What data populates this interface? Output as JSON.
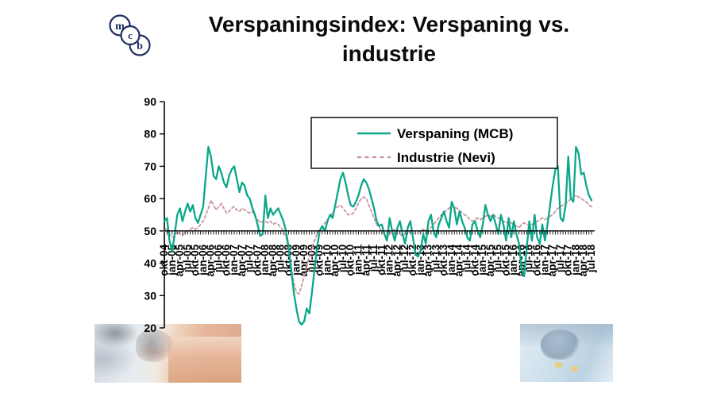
{
  "title": {
    "text": "Verspaningsindex: Verspaning vs. industrie"
  },
  "logo": {
    "name": "MCB",
    "letters": [
      "m",
      "c",
      "b"
    ],
    "color": "#1e2e63"
  },
  "colors": {
    "verspaning_line": "#0aa78a",
    "industrie_line": "#c7909b",
    "axis": "#000000",
    "background": "#ffffff"
  },
  "footer_images": [
    {
      "name": "machining-photo-left",
      "description": "faded photo of cutting tool on copper workpiece"
    },
    {
      "name": "machine-photo-right",
      "description": "faded blue photo of machine spindle"
    }
  ],
  "chart_data": {
    "type": "line",
    "title": "Verspaningsindex: Verspaning vs. industrie",
    "xlabel": "",
    "ylabel": "",
    "ylim": [
      20,
      90
    ],
    "y_ticks": [
      20,
      30,
      40,
      50,
      60,
      70,
      80,
      90
    ],
    "x_axis_crosses_at": 50,
    "grid": false,
    "legend_position": "top-right-box",
    "points_start": "okt-04",
    "points_end": "jul-18",
    "months_per_point": 1,
    "x_label_every_n_months": 3,
    "x_tick_labels": [
      "okt-04",
      "jan-05",
      "apr-05",
      "jul-05",
      "okt-05",
      "jan-06",
      "apr-06",
      "jul-06",
      "okt-06",
      "jan-07",
      "apr-07",
      "jul-07",
      "okt-07",
      "jan-08",
      "apr-08",
      "jul-08",
      "okt-08",
      "jan-09",
      "apr-09",
      "jul-09",
      "okt-09",
      "jan-10",
      "apr-10",
      "jul-10",
      "okt-10",
      "jan-11",
      "apr-11",
      "jul-11",
      "okt-11",
      "jan-12",
      "apr-12",
      "jul-12",
      "okt-12",
      "jan-13",
      "apr-13",
      "jul-13",
      "okt-13",
      "jan-14",
      "apr-14",
      "jul-14",
      "okt-14",
      "jan-15",
      "apr-15",
      "jul-15",
      "okt-15",
      "jan-16",
      "apr-16",
      "jul-16",
      "okt-16",
      "jan-17",
      "apr-17",
      "jul-17",
      "okt-17",
      "jan-18",
      "apr-18",
      "jul-18"
    ],
    "series": [
      {
        "name": "Verspaning (MCB)",
        "color": "#0aa78a",
        "style": "solid",
        "values": [
          53,
          54,
          47,
          43.5,
          49,
          55,
          57,
          53,
          56,
          58.5,
          56,
          58,
          54,
          52.5,
          55,
          57.5,
          67,
          76,
          73,
          67,
          66,
          70,
          68,
          65,
          63.5,
          67,
          69,
          70,
          66,
          62,
          65,
          64,
          61,
          60,
          57,
          55,
          52,
          48.5,
          49,
          61,
          54,
          57,
          55,
          56,
          57,
          55,
          53,
          50,
          45,
          38,
          31,
          26,
          22,
          21,
          22,
          26,
          24.5,
          31,
          38,
          45,
          50,
          51.5,
          50,
          53,
          55,
          54,
          58,
          62,
          66,
          68,
          65,
          61,
          58,
          57.5,
          59,
          61,
          64,
          66,
          65,
          63,
          60,
          57,
          53,
          51.5,
          52,
          49,
          47,
          54,
          50,
          47,
          51,
          53,
          49,
          46,
          51,
          53,
          48,
          43,
          42,
          44,
          49,
          46,
          53,
          55,
          50,
          48,
          52,
          54,
          56,
          53,
          51,
          59,
          57,
          52,
          56,
          53,
          51,
          48,
          47,
          52,
          53,
          50,
          48,
          52,
          58,
          55,
          53,
          55,
          52,
          49,
          55,
          52,
          47,
          54,
          48,
          53,
          49,
          46,
          38,
          36,
          45,
          53,
          47,
          55,
          48,
          46,
          52,
          47,
          52,
          58,
          64,
          69,
          70,
          54,
          53,
          58,
          73,
          60,
          59,
          76,
          74,
          67.5,
          68,
          64,
          61,
          59.5
        ]
      },
      {
        "name": "Industrie (Nevi)",
        "color": "#c7909b",
        "style": "dashed",
        "values": [
          50,
          51,
          49,
          48,
          48.5,
          50,
          49,
          48.5,
          49.5,
          50,
          50.5,
          51,
          50.5,
          51,
          52,
          53,
          55,
          57,
          59.5,
          58,
          56.5,
          57.5,
          58.5,
          57,
          55.5,
          56,
          57,
          57.5,
          56.5,
          56,
          57,
          56.5,
          56,
          55.5,
          56,
          54.5,
          53.5,
          52.5,
          53,
          53,
          52.5,
          53,
          52,
          52.5,
          52,
          51,
          50,
          48,
          44,
          39,
          34,
          31,
          30.5,
          33,
          36,
          39,
          42,
          45,
          47,
          49,
          50.5,
          51.5,
          52.5,
          53.5,
          54.5,
          55.5,
          57,
          57.5,
          58,
          57,
          56,
          55,
          55,
          55.5,
          57,
          58.5,
          60,
          60.5,
          60,
          58,
          56,
          54,
          52,
          51,
          50,
          49,
          48,
          49,
          50,
          50.5,
          49.5,
          49,
          48.5,
          49,
          49.5,
          50,
          49.5,
          49,
          49.5,
          50,
          50.5,
          50,
          50.5,
          51,
          52,
          53,
          54,
          55,
          55.5,
          56.5,
          57,
          58,
          57.5,
          57,
          56.5,
          55.5,
          55,
          54.5,
          53.5,
          53,
          53.5,
          54,
          53.5,
          54,
          54.5,
          55,
          54.5,
          55,
          54.5,
          54,
          53.5,
          53,
          52.5,
          53,
          52.5,
          52,
          51.5,
          51,
          52,
          52.5,
          52,
          51.5,
          52,
          52.5,
          53,
          53.5,
          54,
          53.5,
          54,
          54.5,
          55,
          56,
          57,
          57.5,
          58,
          58.5,
          59,
          60,
          60.5,
          61,
          60.5,
          60,
          59.5,
          59,
          58,
          57.5
        ]
      }
    ]
  }
}
